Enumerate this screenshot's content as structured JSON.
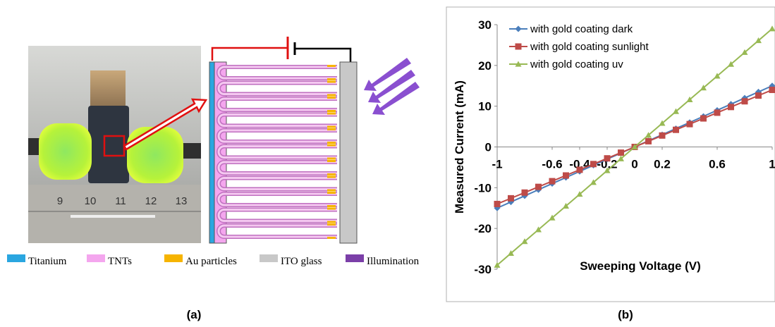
{
  "panel_a": {
    "label": "(a)",
    "ruler_labels": [
      "9",
      "10",
      "11",
      "12",
      "13"
    ],
    "legend": [
      {
        "name": "Titanium",
        "color": "#2aa6e0"
      },
      {
        "name": "TNTs",
        "color": "#f4a6ee"
      },
      {
        "name": "Au particles",
        "color": "#f6b400"
      },
      {
        "name": "ITO glass",
        "color": "#c8c8c8"
      },
      {
        "name": "Illumination",
        "color": "#7b3fa8"
      }
    ]
  },
  "chart_data": {
    "type": "line",
    "panel_label": "(b)",
    "x_label": "Sweeping Voltage (V)",
    "y_label": "Measured Current (mA)",
    "x": [
      -1,
      -0.9,
      -0.8,
      -0.7,
      -0.6,
      -0.5,
      -0.4,
      -0.3,
      -0.2,
      -0.1,
      0,
      0.1,
      0.2,
      0.3,
      0.4,
      0.5,
      0.6,
      0.7,
      0.8,
      0.9,
      1
    ],
    "series": [
      {
        "name": "with gold coating dark",
        "color": "#4a7ebb",
        "marker": "diamond",
        "values": [
          -15,
          -13.5,
          -12,
          -10.5,
          -9,
          -7.5,
          -6,
          -4.5,
          -3,
          -1.5,
          0,
          1.5,
          3,
          4.5,
          6,
          7.5,
          9,
          10.5,
          12,
          13.5,
          15
        ]
      },
      {
        "name": "with gold coating sunlight",
        "color": "#be4b48",
        "marker": "square",
        "values": [
          -14,
          -12.6,
          -11.2,
          -9.8,
          -8.4,
          -7,
          -5.6,
          -4.2,
          -2.8,
          -1.4,
          0,
          1.4,
          2.8,
          4.2,
          5.6,
          7,
          8.4,
          9.8,
          11.2,
          12.6,
          14
        ]
      },
      {
        "name": "with gold coating uv",
        "color": "#98b954",
        "marker": "triangle",
        "values": [
          -29,
          -26.1,
          -23.2,
          -20.3,
          -17.4,
          -14.5,
          -11.6,
          -8.7,
          -5.8,
          -2.9,
          0,
          2.9,
          5.8,
          8.7,
          11.6,
          14.5,
          17.4,
          20.3,
          23.2,
          26.1,
          29
        ]
      }
    ],
    "xlim": [
      -1,
      1
    ],
    "ylim": [
      -30,
      30
    ],
    "xticks": [
      -1,
      -0.6,
      -0.4,
      -0.2,
      0,
      0.2,
      0.6,
      1
    ],
    "yticks": [
      -30,
      -20,
      -10,
      0,
      10,
      20,
      30
    ],
    "legend_position": "upper-left"
  }
}
